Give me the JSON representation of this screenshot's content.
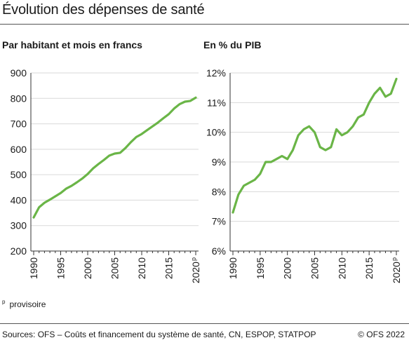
{
  "title": "Évolution des dépenses de santé",
  "note": {
    "marker": "p",
    "text": "provisoire"
  },
  "footer": {
    "source": "Sources: OFS – Coûts et financement du système de santé, CN, ESPOP, STATPOP",
    "copyright": "© OFS 2022"
  },
  "colors": {
    "line": "#6ab547",
    "grid": "#d9d9d9",
    "axis": "#333333"
  },
  "chart_data": [
    {
      "type": "line",
      "title": "Par habitant et mois en francs",
      "x": [
        1990,
        1991,
        1992,
        1993,
        1994,
        1995,
        1996,
        1997,
        1998,
        1999,
        2000,
        2001,
        2002,
        2003,
        2004,
        2005,
        2006,
        2007,
        2008,
        2009,
        2010,
        2011,
        2012,
        2013,
        2014,
        2015,
        2016,
        2017,
        2018,
        2019,
        2020
      ],
      "series": [
        {
          "values": [
            332,
            372,
            390,
            402,
            415,
            428,
            445,
            456,
            470,
            485,
            503,
            525,
            542,
            558,
            575,
            583,
            586,
            605,
            628,
            648,
            660,
            675,
            690,
            705,
            722,
            738,
            760,
            777,
            787,
            790,
            803
          ]
        }
      ],
      "ylim": [
        200,
        900
      ],
      "yticks": [
        200,
        300,
        400,
        500,
        600,
        700,
        800,
        900
      ],
      "ytick_labels": [
        "200",
        "300",
        "400",
        "500",
        "600",
        "700",
        "800",
        "900"
      ],
      "xticks": [
        1990,
        1995,
        2000,
        2005,
        2010,
        2015,
        2020
      ],
      "xtick_labels": [
        "1990",
        "1995",
        "2000",
        "2005",
        "2010",
        "2015",
        "2020"
      ],
      "last_tick_suffix": "p",
      "grid": "horizontal"
    },
    {
      "type": "line",
      "title": "En % du PIB",
      "x": [
        1990,
        1991,
        1992,
        1993,
        1994,
        1995,
        1996,
        1997,
        1998,
        1999,
        2000,
        2001,
        2002,
        2003,
        2004,
        2005,
        2006,
        2007,
        2008,
        2009,
        2010,
        2011,
        2012,
        2013,
        2014,
        2015,
        2016,
        2017,
        2018,
        2019,
        2020
      ],
      "series": [
        {
          "values": [
            7.3,
            7.9,
            8.2,
            8.3,
            8.4,
            8.6,
            9.0,
            9.0,
            9.1,
            9.2,
            9.1,
            9.4,
            9.9,
            10.1,
            10.2,
            10.0,
            9.5,
            9.4,
            9.5,
            10.1,
            9.9,
            10.0,
            10.2,
            10.5,
            10.6,
            11.0,
            11.3,
            11.5,
            11.2,
            11.3,
            11.8
          ]
        }
      ],
      "ylim": [
        6,
        12
      ],
      "yticks": [
        6,
        7,
        8,
        9,
        10,
        11,
        12
      ],
      "ytick_labels": [
        "6%",
        "7%",
        "8%",
        "9%",
        "10%",
        "11%",
        "12%"
      ],
      "xticks": [
        1990,
        1995,
        2000,
        2005,
        2010,
        2015,
        2020
      ],
      "xtick_labels": [
        "1990",
        "1995",
        "2000",
        "2005",
        "2010",
        "2015",
        "2020"
      ],
      "last_tick_suffix": "p",
      "grid": "horizontal"
    }
  ]
}
